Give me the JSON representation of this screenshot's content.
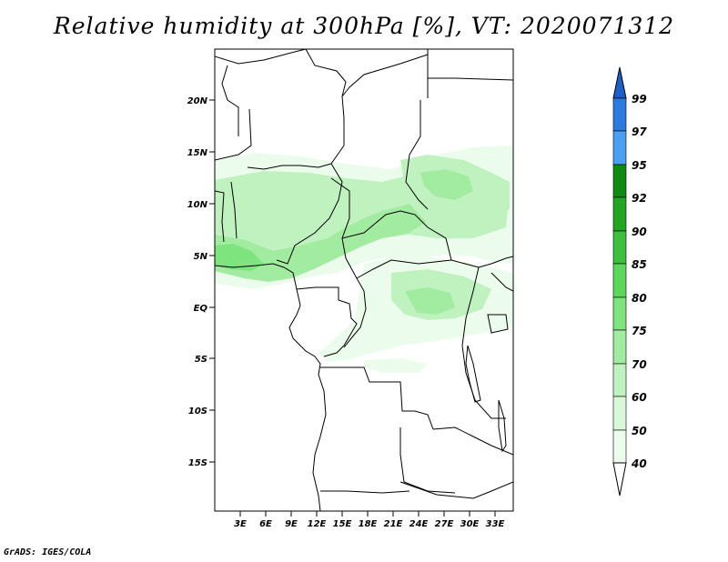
{
  "title": "Relative humidity at 300hPa [%], VT: 2020071312",
  "credit": "GrADS: IGES/COLA",
  "map": {
    "lat_labels": [
      "20N",
      "15N",
      "10N",
      "5N",
      "EQ",
      "5S",
      "10S",
      "15S"
    ],
    "lon_labels": [
      "3E",
      "6E",
      "9E",
      "12E",
      "15E",
      "18E",
      "21E",
      "24E",
      "27E",
      "30E",
      "33E"
    ]
  },
  "colorbar": {
    "levels": [
      "99",
      "97",
      "95",
      "92",
      "90",
      "85",
      "80",
      "75",
      "70",
      "60",
      "50",
      "40"
    ],
    "colors": [
      "#1c5fc8",
      "#2a7ae0",
      "#4aa0f0",
      "#0f8c0f",
      "#22a622",
      "#3cc03c",
      "#5ad85a",
      "#7ee47e",
      "#a2eca2",
      "#c0f2c0",
      "#d8f8d8",
      "#ecfcec"
    ]
  },
  "shading_colors": {
    "low": "#ecfcec",
    "mid": "#c0f2c0",
    "high": "#a2eca2",
    "peak": "#7ee47e"
  }
}
